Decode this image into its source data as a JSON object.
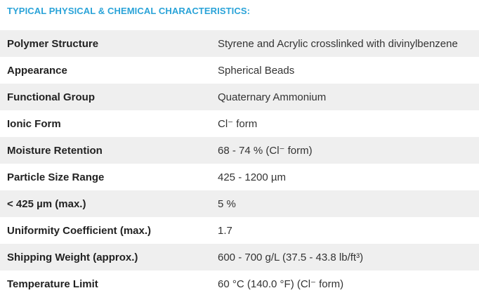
{
  "header": {
    "title": "TYPICAL PHYSICAL & CHEMICAL CHARACTERISTICS:"
  },
  "table": {
    "rows": [
      [
        "Polymer Structure",
        "Styrene and Acrylic crosslinked with divinylbenzene"
      ],
      [
        "Appearance",
        "Spherical Beads"
      ],
      [
        "Functional Group",
        "Quaternary Ammonium"
      ],
      [
        "Ionic Form",
        "Cl⁻ form"
      ],
      [
        "Moisture Retention",
        "68 - 74 % (Cl⁻ form)"
      ],
      [
        "Particle Size Range",
        "425 - 1200 µm"
      ],
      [
        "< 425 µm (max.)",
        "5 %"
      ],
      [
        "Uniformity Coefficient (max.)",
        "1.7"
      ],
      [
        "Shipping Weight (approx.)",
        "600 - 700 g/L (37.5 - 43.8 lb/ft³)"
      ],
      [
        "Temperature Limit",
        "60 °C (140.0 °F) (Cl⁻ form)"
      ]
    ]
  }
}
